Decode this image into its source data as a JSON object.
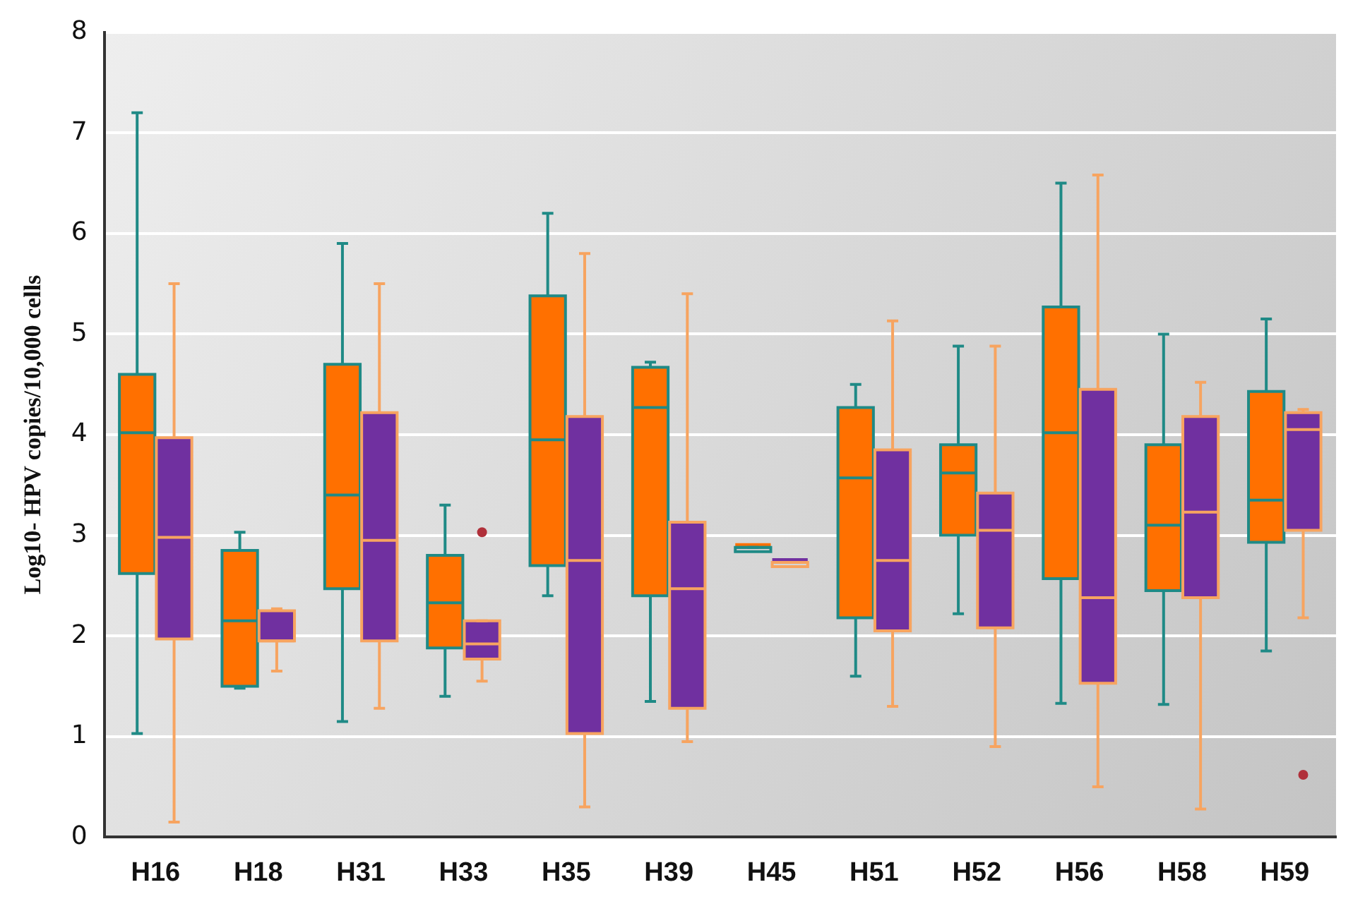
{
  "chart_data": {
    "type": "box",
    "ylabel": "Log10- HPV copies/10,000 cells",
    "categories": [
      "H16",
      "H18",
      "H31",
      "H33",
      "H35",
      "H39",
      "H45",
      "H51",
      "H52",
      "H56",
      "H58",
      "H59"
    ],
    "ylim": [
      0,
      8
    ],
    "yticks": [
      0,
      1,
      2,
      3,
      4,
      5,
      6,
      7,
      8
    ],
    "grid": "y",
    "legend": false,
    "series": [
      {
        "color": "#ff7000",
        "boxes": [
          {
            "low": 1.03,
            "q1": 2.62,
            "median": 4.02,
            "q3": 4.6,
            "high": 7.2
          },
          {
            "low": 1.48,
            "q1": 1.5,
            "median": 2.15,
            "q3": 2.85,
            "high": 3.03
          },
          {
            "low": 1.15,
            "q1": 2.47,
            "median": 3.4,
            "q3": 4.7,
            "high": 5.9
          },
          {
            "low": 1.4,
            "q1": 1.88,
            "median": 2.33,
            "q3": 2.8,
            "high": 3.3
          },
          {
            "low": 2.4,
            "q1": 2.7,
            "median": 3.95,
            "q3": 5.38,
            "high": 6.2
          },
          {
            "low": 1.35,
            "q1": 2.4,
            "median": 4.27,
            "q3": 4.67,
            "high": 4.72
          },
          {
            "low": 2.88,
            "q1": 2.88,
            "median": 2.88,
            "q3": 2.88,
            "high": 2.88
          },
          {
            "low": 1.6,
            "q1": 2.18,
            "median": 3.57,
            "q3": 4.27,
            "high": 4.5
          },
          {
            "low": 2.22,
            "q1": 3.0,
            "median": 3.62,
            "q3": 3.9,
            "high": 4.88
          },
          {
            "low": 1.33,
            "q1": 2.57,
            "median": 4.02,
            "q3": 5.27,
            "high": 6.5
          },
          {
            "low": 1.32,
            "q1": 2.45,
            "median": 3.1,
            "q3": 3.9,
            "high": 5.0
          },
          {
            "low": 1.85,
            "q1": 2.93,
            "median": 3.35,
            "q3": 4.43,
            "high": 5.15
          }
        ]
      },
      {
        "color": "#7030a0",
        "boxes": [
          {
            "low": 0.15,
            "q1": 1.97,
            "median": 2.98,
            "q3": 3.97,
            "high": 5.5
          },
          {
            "low": 1.65,
            "q1": 1.95,
            "median": 1.95,
            "q3": 2.25,
            "high": 2.27
          },
          {
            "low": 1.28,
            "q1": 1.95,
            "median": 2.95,
            "q3": 4.22,
            "high": 5.5
          },
          {
            "low": 1.55,
            "q1": 1.77,
            "median": 1.92,
            "q3": 2.15,
            "high": 2.15,
            "outliers": [
              3.03
            ]
          },
          {
            "low": 0.3,
            "q1": 1.03,
            "median": 2.75,
            "q3": 4.18,
            "high": 5.8
          },
          {
            "low": 0.95,
            "q1": 1.28,
            "median": 2.47,
            "q3": 3.13,
            "high": 5.4
          },
          {
            "low": 2.73,
            "q1": 2.73,
            "median": 2.73,
            "q3": 2.73,
            "high": 2.73
          },
          {
            "low": 1.3,
            "q1": 2.05,
            "median": 2.75,
            "q3": 3.85,
            "high": 5.13
          },
          {
            "low": 0.9,
            "q1": 2.08,
            "median": 3.05,
            "q3": 3.42,
            "high": 4.88
          },
          {
            "low": 0.5,
            "q1": 1.53,
            "median": 2.38,
            "q3": 4.45,
            "high": 6.58
          },
          {
            "low": 0.28,
            "q1": 2.38,
            "median": 3.23,
            "q3": 4.18,
            "high": 4.52
          },
          {
            "low": 2.18,
            "q1": 3.05,
            "median": 4.05,
            "q3": 4.22,
            "high": 4.25,
            "outliers": [
              0.62
            ]
          }
        ]
      }
    ]
  }
}
